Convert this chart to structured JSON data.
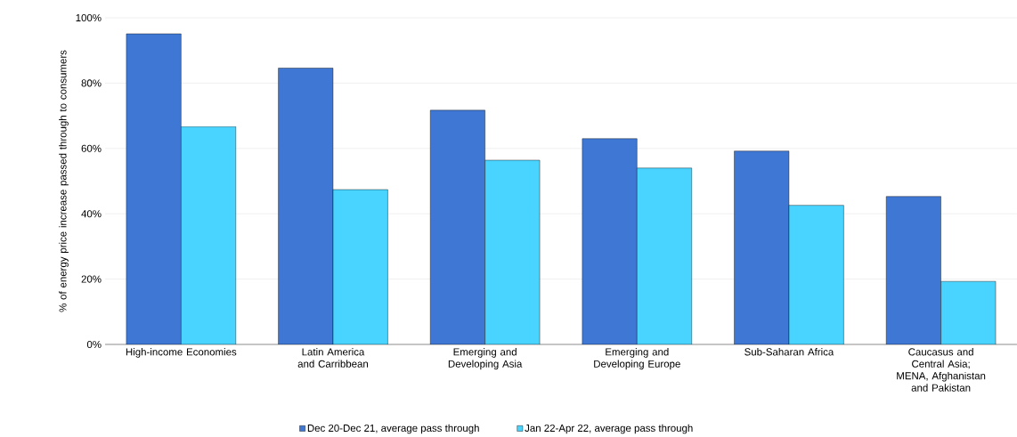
{
  "chart_data": {
    "type": "bar",
    "ylabel": "% of energy price increase passed through to consumers",
    "categories": [
      "High-income Economies",
      "Latin America and Carribbean",
      "Emerging and Developing Asia",
      "Emerging and Developing Europe",
      "Sub-Saharan Africa",
      "Caucasus and Central Asia; MENA, Afghanistan and Pakistan"
    ],
    "series": [
      {
        "name": "Dec 20-Dec 21, average pass through",
        "color": "#3f78d4",
        "values": [
          95.1,
          84.6,
          71.7,
          63.0,
          59.2,
          45.3
        ]
      },
      {
        "name": "Jan 22-Apr 22, average pass through",
        "color": "#48d4ff",
        "values": [
          66.7,
          47.4,
          56.4,
          54.0,
          42.6,
          19.3
        ]
      }
    ],
    "ylim": [
      0,
      100
    ],
    "yticks": [
      {
        "value": 0,
        "label": "0%"
      },
      {
        "value": 20,
        "label": "20%"
      },
      {
        "value": 40,
        "label": "40%"
      },
      {
        "value": 60,
        "label": "60%"
      },
      {
        "value": 80,
        "label": "80%"
      },
      {
        "value": 100,
        "label": "100%"
      }
    ],
    "grid": "y",
    "legend": "bottom"
  }
}
